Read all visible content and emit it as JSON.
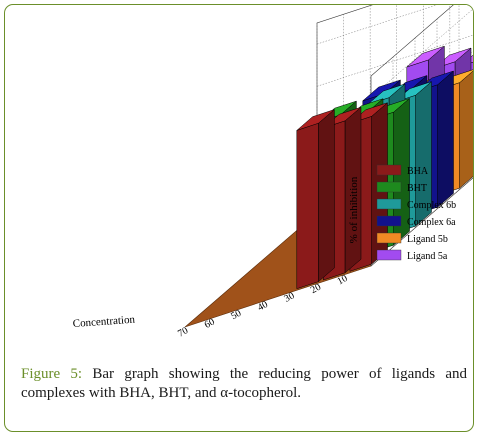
{
  "chart_data": {
    "type": "bar",
    "subtype": "3d-grouped",
    "title": "",
    "xlabel": "Concentration",
    "ylabel": "% of inhibition",
    "categories": [
      "70",
      "60",
      "50",
      "40",
      "30",
      "20",
      "10"
    ],
    "y_ticks": [
      "0",
      "20",
      "40",
      "60",
      "80"
    ],
    "ylim": [
      0,
      90
    ],
    "grid": true,
    "legend_position": "right",
    "series": [
      {
        "name": "BHA",
        "color": "#8b1a1a",
        "values": [
          null,
          null,
          null,
          null,
          75,
          72,
          70
        ]
      },
      {
        "name": "BHT",
        "color": "#1e8a1e",
        "values": [
          null,
          null,
          null,
          null,
          70,
          67,
          63
        ]
      },
      {
        "name": "Complex 6b",
        "color": "#1f9a9a",
        "values": [
          null,
          null,
          null,
          null,
          60,
          65,
          62
        ]
      },
      {
        "name": "Complex 6a",
        "color": "#12128c",
        "values": [
          null,
          null,
          null,
          null,
          62,
          60,
          58
        ]
      },
      {
        "name": "Ligand 5b",
        "color": "#f08a24",
        "values": [
          null,
          null,
          null,
          null,
          53,
          52,
          50
        ]
      },
      {
        "name": "Ligand 5a",
        "color": "#a24bf0",
        "values": [
          null,
          null,
          null,
          null,
          60,
          55,
          52
        ]
      }
    ]
  },
  "caption": {
    "label": "Figure 5:",
    "text": " Bar graph showing the reducing power of ligands and complexes with BHA, BHT, and α-tocopherol."
  }
}
